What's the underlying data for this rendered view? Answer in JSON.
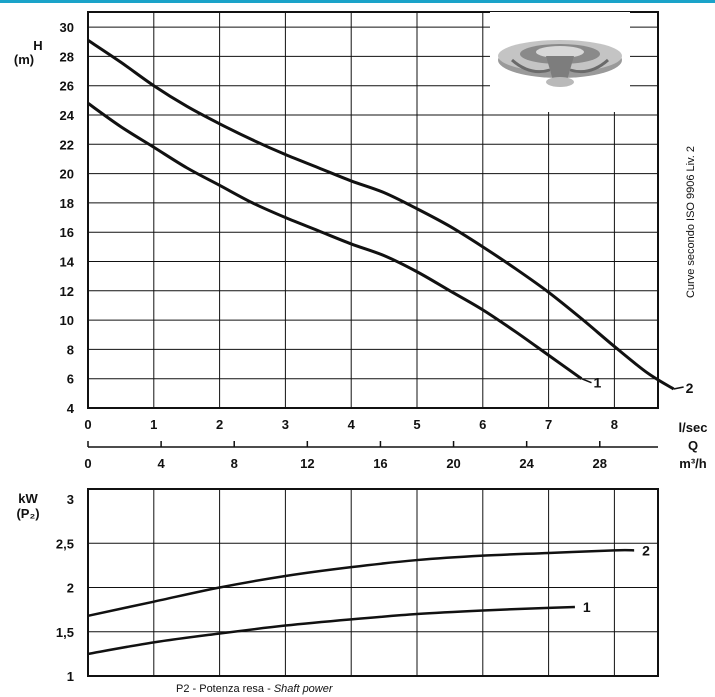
{
  "top_chart": {
    "y_label": [
      "H",
      "(m)"
    ],
    "y_ticks": [
      "4",
      "6",
      "8",
      "10",
      "12",
      "14",
      "16",
      "18",
      "20",
      "22",
      "24",
      "26",
      "28",
      "30"
    ],
    "x_ticks": [
      "0",
      "1",
      "2",
      "3",
      "4",
      "5",
      "6",
      "7",
      "8"
    ],
    "x_unit": "l/sec",
    "q_label": "Q",
    "x2_ticks": [
      "0",
      "4",
      "8",
      "12",
      "16",
      "20",
      "24",
      "28"
    ],
    "x2_unit": "m³/h",
    "side_note": "Curve secondo ISO 9906 Liv. 2"
  },
  "bottom_chart": {
    "y_label": [
      "kW",
      "(P₂)"
    ],
    "y_ticks": [
      "1",
      "1,5",
      "2",
      "2,5",
      "3"
    ],
    "caption_plain": "P2 - Potenza resa - ",
    "caption_italic": "Shaft power"
  },
  "chart_data": [
    {
      "type": "line",
      "x_unit": "l/sec",
      "ylim": [
        4,
        31
      ],
      "xlim": [
        0,
        9.2
      ],
      "grid": true,
      "series": [
        {
          "name": "1",
          "x": [
            0,
            0.5,
            1,
            1.5,
            2,
            2.5,
            3,
            3.5,
            4,
            4.5,
            5,
            5.5,
            6,
            6.5,
            7,
            7.5
          ],
          "y": [
            24.8,
            23.2,
            21.8,
            20.4,
            19.2,
            18.0,
            17.0,
            16.1,
            15.2,
            14.4,
            13.3,
            12.0,
            10.7,
            9.2,
            7.6,
            6.0
          ]
        },
        {
          "name": "2",
          "x": [
            0,
            0.5,
            1,
            1.5,
            2,
            2.5,
            3,
            3.5,
            4,
            4.5,
            5,
            5.5,
            6,
            6.5,
            7,
            7.5,
            8,
            8.5,
            8.9
          ],
          "y": [
            29.1,
            27.6,
            26.0,
            24.6,
            23.4,
            22.3,
            21.3,
            20.4,
            19.5,
            18.7,
            17.6,
            16.4,
            15.0,
            13.5,
            11.9,
            10.1,
            8.2,
            6.4,
            5.3
          ]
        }
      ]
    },
    {
      "type": "line",
      "x_unit": "l/sec",
      "ylim": [
        1,
        3
      ],
      "xlim": [
        0,
        9.2
      ],
      "grid": true,
      "series": [
        {
          "name": "1",
          "x": [
            0,
            1,
            2,
            3,
            4,
            5,
            6,
            7,
            7.4
          ],
          "y": [
            1.25,
            1.38,
            1.48,
            1.57,
            1.64,
            1.7,
            1.74,
            1.77,
            1.78
          ]
        },
        {
          "name": "2",
          "x": [
            0,
            1,
            2,
            3,
            4,
            5,
            6,
            7,
            8,
            8.3
          ],
          "y": [
            1.68,
            1.84,
            2.0,
            2.13,
            2.23,
            2.31,
            2.36,
            2.39,
            2.42,
            2.42
          ]
        }
      ]
    }
  ],
  "image": {
    "description": "pump impeller"
  }
}
